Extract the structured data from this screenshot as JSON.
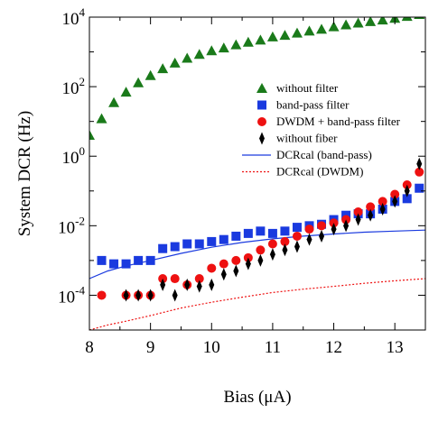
{
  "chart_data": {
    "type": "scatter",
    "title": "",
    "xlabel": "Bias (μA)",
    "ylabel": "System DCR (Hz)",
    "xlim": [
      8,
      13.5
    ],
    "ylim_log10": [
      -5,
      4
    ],
    "y_scale": "log",
    "x_ticks": [
      "8",
      "9",
      "10",
      "11",
      "12",
      "13"
    ],
    "y_ticks": [
      {
        "exp": -4,
        "base": "10",
        "sup": "-4"
      },
      {
        "exp": -2,
        "base": "10",
        "sup": "-2"
      },
      {
        "exp": 0,
        "base": "10",
        "sup": "0"
      },
      {
        "exp": 2,
        "base": "10",
        "sup": "2"
      },
      {
        "exp": 4,
        "base": "10",
        "sup": "4"
      }
    ],
    "grid": false,
    "legend_position": "right",
    "series": [
      {
        "name": "without filter",
        "marker": "triangle",
        "color": "#1a7a1a",
        "x": [
          8.0,
          8.2,
          8.4,
          8.6,
          8.8,
          9.0,
          9.2,
          9.4,
          9.6,
          9.8,
          10.0,
          10.2,
          10.4,
          10.6,
          10.8,
          11.0,
          11.2,
          11.4,
          11.6,
          11.8,
          12.0,
          12.2,
          12.4,
          12.6,
          12.8,
          13.0,
          13.2,
          13.4
        ],
        "y": [
          4,
          12,
          35,
          70,
          130,
          210,
          330,
          480,
          660,
          850,
          1080,
          1300,
          1600,
          1900,
          2200,
          2700,
          3000,
          3500,
          4000,
          4500,
          5300,
          6000,
          6800,
          7500,
          8300,
          9300,
          10500,
          12000
        ]
      },
      {
        "name": "band-pass filter",
        "marker": "square",
        "color": "#1a3adf",
        "x": [
          8.2,
          8.4,
          8.6,
          8.8,
          9.0,
          9.2,
          9.4,
          9.6,
          9.8,
          10.0,
          10.2,
          10.4,
          10.6,
          10.8,
          11.0,
          11.2,
          11.4,
          11.6,
          11.8,
          12.0,
          12.2,
          12.4,
          12.6,
          12.8,
          13.0,
          13.2,
          13.4
        ],
        "y": [
          0.001,
          0.0008,
          0.0008,
          0.001,
          0.001,
          0.0022,
          0.0025,
          0.003,
          0.003,
          0.0035,
          0.004,
          0.005,
          0.006,
          0.007,
          0.006,
          0.007,
          0.009,
          0.01,
          0.011,
          0.015,
          0.02,
          0.022,
          0.022,
          0.03,
          0.05,
          0.06,
          0.12
        ]
      },
      {
        "name": "DWDM + band-pass filter",
        "marker": "circle",
        "color": "#ee1111",
        "x": [
          8.2,
          8.6,
          8.8,
          9.0,
          9.2,
          9.4,
          9.6,
          9.8,
          10.0,
          10.2,
          10.4,
          10.6,
          10.8,
          11.0,
          11.2,
          11.4,
          11.6,
          11.8,
          12.0,
          12.2,
          12.4,
          12.6,
          12.8,
          13.0,
          13.2,
          13.4
        ],
        "y": [
          0.0001,
          0.0001,
          0.0001,
          0.0001,
          0.0003,
          0.0003,
          0.0002,
          0.0003,
          0.0006,
          0.0008,
          0.001,
          0.0012,
          0.002,
          0.003,
          0.0035,
          0.005,
          0.008,
          0.01,
          0.012,
          0.015,
          0.025,
          0.035,
          0.05,
          0.08,
          0.15,
          0.35
        ]
      },
      {
        "name": "without fiber",
        "marker": "diamond",
        "color": "#000000",
        "x": [
          8.6,
          8.8,
          9.0,
          9.2,
          9.4,
          9.6,
          9.8,
          10.0,
          10.2,
          10.4,
          10.6,
          10.8,
          11.0,
          11.2,
          11.4,
          11.6,
          11.8,
          12.0,
          12.2,
          12.4,
          12.6,
          12.8,
          13.0,
          13.2,
          13.4
        ],
        "y": [
          0.0001,
          0.0001,
          0.0001,
          0.0002,
          0.0001,
          0.0002,
          0.00018,
          0.0002,
          0.0004,
          0.0005,
          0.0008,
          0.001,
          0.0015,
          0.002,
          0.0025,
          0.004,
          0.005,
          0.008,
          0.01,
          0.015,
          0.02,
          0.03,
          0.05,
          0.1,
          0.6
        ]
      }
    ],
    "curves": [
      {
        "name": "DCRcal (band-pass)",
        "style": "solid",
        "color": "#1a3adf",
        "x": [
          8.0,
          8.3,
          8.6,
          9.0,
          9.5,
          10.0,
          10.5,
          11.0,
          11.5,
          12.0,
          12.5,
          13.0,
          13.5
        ],
        "y": [
          0.0003,
          0.0005,
          0.0007,
          0.001,
          0.0016,
          0.0024,
          0.0033,
          0.0042,
          0.005,
          0.0058,
          0.0065,
          0.007,
          0.0075
        ]
      },
      {
        "name": "DCRcal (DWDM)",
        "style": "dotted",
        "color": "#ee1111",
        "x": [
          8.0,
          8.3,
          8.6,
          9.0,
          9.5,
          10.0,
          10.5,
          11.0,
          11.5,
          12.0,
          12.5,
          13.0,
          13.5
        ],
        "y": [
          1e-05,
          1.4e-05,
          1.8e-05,
          2.6e-05,
          4.3e-05,
          6.3e-05,
          8.8e-05,
          0.00012,
          0.00015,
          0.00018,
          0.00022,
          0.00026,
          0.0003
        ]
      }
    ]
  }
}
